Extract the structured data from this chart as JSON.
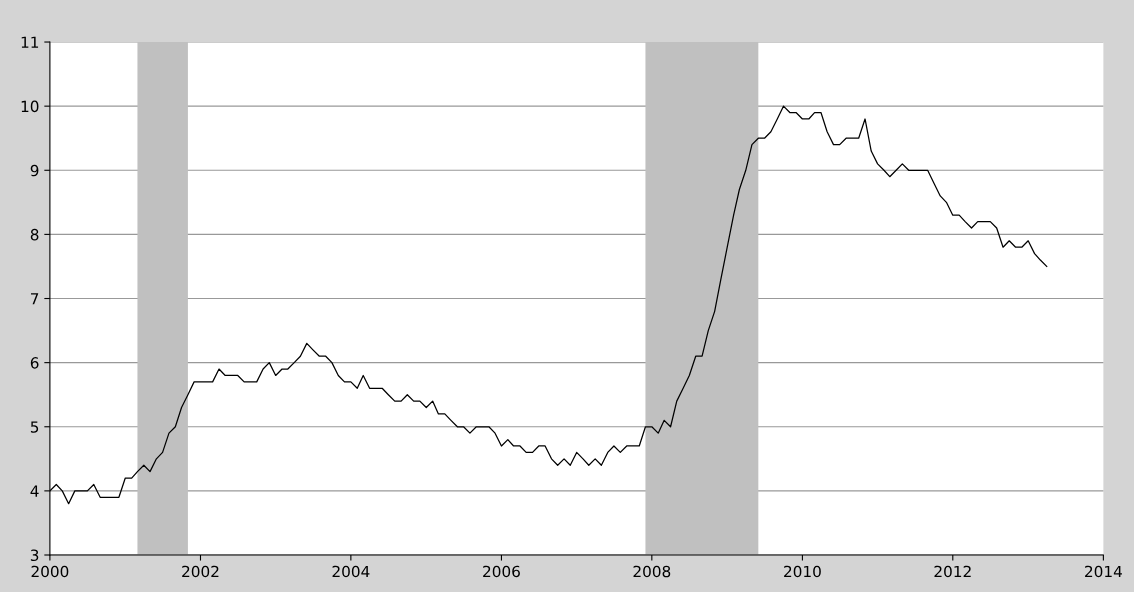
{
  "chart_data": {
    "type": "line",
    "x": [
      "2000-01",
      "2000-02",
      "2000-03",
      "2000-04",
      "2000-05",
      "2000-06",
      "2000-07",
      "2000-08",
      "2000-09",
      "2000-10",
      "2000-11",
      "2000-12",
      "2001-01",
      "2001-02",
      "2001-03",
      "2001-04",
      "2001-05",
      "2001-06",
      "2001-07",
      "2001-08",
      "2001-09",
      "2001-10",
      "2001-11",
      "2001-12",
      "2002-01",
      "2002-02",
      "2002-03",
      "2002-04",
      "2002-05",
      "2002-06",
      "2002-07",
      "2002-08",
      "2002-09",
      "2002-10",
      "2002-11",
      "2002-12",
      "2003-01",
      "2003-02",
      "2003-03",
      "2003-04",
      "2003-05",
      "2003-06",
      "2003-07",
      "2003-08",
      "2003-09",
      "2003-10",
      "2003-11",
      "2003-12",
      "2004-01",
      "2004-02",
      "2004-03",
      "2004-04",
      "2004-05",
      "2004-06",
      "2004-07",
      "2004-08",
      "2004-09",
      "2004-10",
      "2004-11",
      "2004-12",
      "2005-01",
      "2005-02",
      "2005-03",
      "2005-04",
      "2005-05",
      "2005-06",
      "2005-07",
      "2005-08",
      "2005-09",
      "2005-10",
      "2005-11",
      "2005-12",
      "2006-01",
      "2006-02",
      "2006-03",
      "2006-04",
      "2006-05",
      "2006-06",
      "2006-07",
      "2006-08",
      "2006-09",
      "2006-10",
      "2006-11",
      "2006-12",
      "2007-01",
      "2007-02",
      "2007-03",
      "2007-04",
      "2007-05",
      "2007-06",
      "2007-07",
      "2007-08",
      "2007-09",
      "2007-10",
      "2007-11",
      "2007-12",
      "2008-01",
      "2008-02",
      "2008-03",
      "2008-04",
      "2008-05",
      "2008-06",
      "2008-07",
      "2008-08",
      "2008-09",
      "2008-10",
      "2008-11",
      "2008-12",
      "2009-01",
      "2009-02",
      "2009-03",
      "2009-04",
      "2009-05",
      "2009-06",
      "2009-07",
      "2009-08",
      "2009-09",
      "2009-10",
      "2009-11",
      "2009-12",
      "2010-01",
      "2010-02",
      "2010-03",
      "2010-04",
      "2010-05",
      "2010-06",
      "2010-07",
      "2010-08",
      "2010-09",
      "2010-10",
      "2010-11",
      "2010-12",
      "2011-01",
      "2011-02",
      "2011-03",
      "2011-04",
      "2011-05",
      "2011-06",
      "2011-07",
      "2011-08",
      "2011-09",
      "2011-10",
      "2011-11",
      "2011-12",
      "2012-01",
      "2012-02",
      "2012-03",
      "2012-04",
      "2012-05",
      "2012-06",
      "2012-07",
      "2012-08",
      "2012-09",
      "2012-10",
      "2012-11",
      "2012-12",
      "2013-01",
      "2013-02",
      "2013-03",
      "2013-04"
    ],
    "series": [
      {
        "color": "#000000",
        "values": [
          4.0,
          4.1,
          4.0,
          3.8,
          4.0,
          4.0,
          4.0,
          4.1,
          3.9,
          3.9,
          3.9,
          3.9,
          4.2,
          4.2,
          4.3,
          4.4,
          4.3,
          4.5,
          4.6,
          4.9,
          5.0,
          5.3,
          5.5,
          5.7,
          5.7,
          5.7,
          5.7,
          5.9,
          5.8,
          5.8,
          5.8,
          5.7,
          5.7,
          5.7,
          5.9,
          6.0,
          5.8,
          5.9,
          5.9,
          6.0,
          6.1,
          6.3,
          6.2,
          6.1,
          6.1,
          6.0,
          5.8,
          5.7,
          5.7,
          5.6,
          5.8,
          5.6,
          5.6,
          5.6,
          5.5,
          5.4,
          5.4,
          5.5,
          5.4,
          5.4,
          5.3,
          5.4,
          5.2,
          5.2,
          5.1,
          5.0,
          5.0,
          4.9,
          5.0,
          5.0,
          5.0,
          4.9,
          4.7,
          4.8,
          4.7,
          4.7,
          4.6,
          4.6,
          4.7,
          4.7,
          4.5,
          4.4,
          4.5,
          4.4,
          4.6,
          4.5,
          4.4,
          4.5,
          4.4,
          4.6,
          4.7,
          4.6,
          4.7,
          4.7,
          4.7,
          5.0,
          5.0,
          4.9,
          5.1,
          5.0,
          5.4,
          5.6,
          5.8,
          6.1,
          6.1,
          6.5,
          6.8,
          7.3,
          7.8,
          8.3,
          8.7,
          9.0,
          9.4,
          9.5,
          9.5,
          9.6,
          9.8,
          10.0,
          9.9,
          9.9,
          9.8,
          9.8,
          9.9,
          9.9,
          9.6,
          9.4,
          9.4,
          9.5,
          9.5,
          9.5,
          9.8,
          9.3,
          9.1,
          9.0,
          8.9,
          9.0,
          9.1,
          9.0,
          9.0,
          9.0,
          9.0,
          8.8,
          8.6,
          8.5,
          8.3,
          8.3,
          8.2,
          8.1,
          8.2,
          8.2,
          8.2,
          8.1,
          7.8,
          7.9,
          7.8,
          7.8,
          7.9,
          7.7,
          7.6,
          7.5
        ]
      }
    ],
    "xlim": [
      "2000-01",
      "2014-01"
    ],
    "xticks": [
      "2000",
      "2002",
      "2004",
      "2006",
      "2008",
      "2010",
      "2012",
      "2014"
    ],
    "ylim": [
      3,
      11
    ],
    "yticks": [
      3,
      4,
      5,
      6,
      7,
      8,
      9,
      10,
      11
    ],
    "grid": "y",
    "line_style": "solid",
    "marker": "none",
    "bands": [
      {
        "axis": "x",
        "from": "2001-03",
        "to": "2001-11",
        "color": "#c0c0c0"
      },
      {
        "axis": "x",
        "from": "2007-12",
        "to": "2009-06",
        "color": "#c0c0c0"
      }
    ]
  }
}
